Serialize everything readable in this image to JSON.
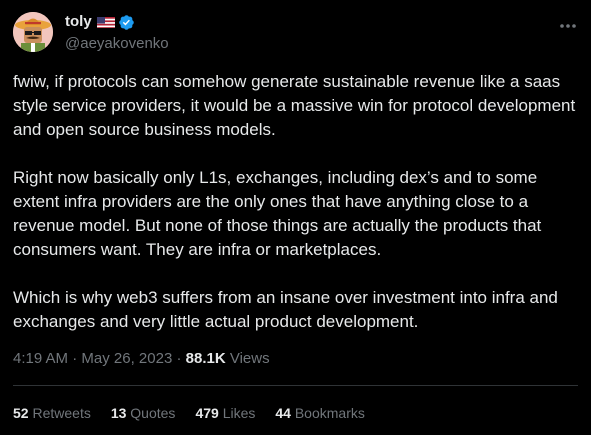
{
  "author": {
    "display_name": "toly",
    "handle": "@aeyakovenko",
    "flag": "us-flag",
    "verified": true,
    "verified_color": "#1d9bf0"
  },
  "tweet": {
    "paragraphs": [
      "fwiw, if protocols can somehow generate sustainable revenue like a saas style service providers, it would be a massive win for protocol development and open source business models.",
      "Right now basically only L1s, exchanges, including dex’s and to some extent infra providers are the only ones that have anything close to a revenue model. But none of those things are actually the products that consumers want. They are infra or marketplaces.",
      "Which is why web3 suffers from an insane over investment into infra and exchanges and very little actual product development."
    ]
  },
  "meta": {
    "time": "4:19 AM",
    "separator": "·",
    "date": "May 26, 2023",
    "views_count": "88.1K",
    "views_label": "Views"
  },
  "stats": {
    "retweets": {
      "count": "52",
      "label": "Retweets"
    },
    "quotes": {
      "count": "13",
      "label": "Quotes"
    },
    "likes": {
      "count": "479",
      "label": "Likes"
    },
    "bookmarks": {
      "count": "44",
      "label": "Bookmarks"
    }
  },
  "colors": {
    "background": "#000000",
    "text": "#e7e9ea",
    "secondary": "#71767b",
    "divider": "#2f3336"
  }
}
